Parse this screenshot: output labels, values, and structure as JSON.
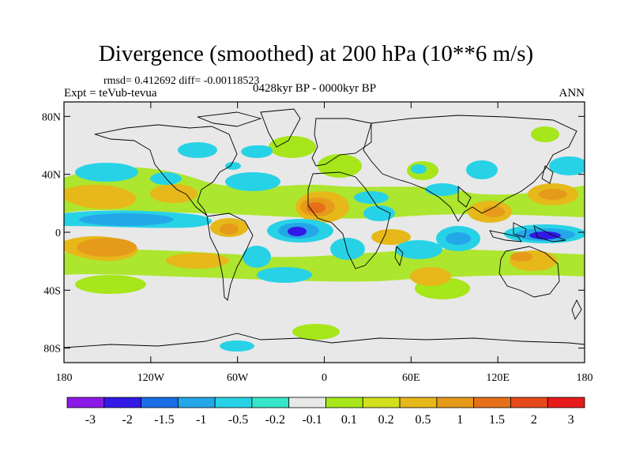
{
  "title": "Divergence (smoothed) at 200 hPa (10**6 m/s)",
  "stats_line": "rmsd= 0.412692 diff= -0.00118523",
  "experiment_line": "Expt = teVub-tevua",
  "period_line": "0428kyr BP - 0000kyr BP",
  "season": "ANN",
  "lat_ticks": [
    {
      "value": 80,
      "label": "80N"
    },
    {
      "value": 40,
      "label": "40N"
    },
    {
      "value": 0,
      "label": "0"
    },
    {
      "value": -40,
      "label": "40S"
    },
    {
      "value": -80,
      "label": "80S"
    }
  ],
  "lon_ticks": [
    {
      "value": -180,
      "label": "180"
    },
    {
      "value": -120,
      "label": "120W"
    },
    {
      "value": -60,
      "label": "60W"
    },
    {
      "value": 0,
      "label": "0"
    },
    {
      "value": 60,
      "label": "60E"
    },
    {
      "value": 120,
      "label": "120E"
    },
    {
      "value": 180,
      "label": "180"
    }
  ],
  "colorbar": {
    "colors": [
      "#8c1ae6",
      "#3319e6",
      "#1a6ee6",
      "#24a7e8",
      "#28d2e6",
      "#36e6c8",
      "#e8e8e8",
      "#a6e61a",
      "#d2e01e",
      "#e6b81a",
      "#e69a1a",
      "#e6701a",
      "#e64a1a",
      "#e61a1a"
    ],
    "labels": [
      "-3",
      "-2",
      "-1.5",
      "-1",
      "-0.5",
      "-0.2",
      "-0.1",
      "0.1",
      "0.2",
      "0.5",
      "1",
      "1.5",
      "2",
      "3"
    ]
  },
  "chart_data": {
    "type": "heatmap",
    "projection": "cylindrical equidistant",
    "lon_range": [
      -180,
      180
    ],
    "lat_range": [
      -90,
      90
    ],
    "background_level": "-0.1 to 0.1",
    "features": [
      {
        "lon": -21,
        "lat": 0,
        "level": "-3"
      },
      {
        "lon": 160,
        "lat": 0,
        "level": "-2"
      },
      {
        "lon": -25,
        "lat": 17,
        "level": "1.5"
      },
      {
        "lon": -148,
        "lat": -12,
        "level": "1"
      },
      {
        "lon": -93,
        "lat": 0,
        "level": "1"
      },
      {
        "lon": 20,
        "lat": -5,
        "level": "0.5"
      },
      {
        "lon": 55,
        "lat": 5,
        "level": "-1"
      },
      {
        "lon": 96,
        "lat": 0,
        "level": "-1.5"
      },
      {
        "lon": 120,
        "lat": 8,
        "level": "1.5"
      },
      {
        "lon": 150,
        "lat": 28,
        "level": "1"
      },
      {
        "lon": -50,
        "lat": -8,
        "level": "-0.5"
      },
      {
        "lon": -140,
        "lat": 12,
        "level": "-1"
      },
      {
        "lon": 120,
        "lat": -25,
        "level": "1"
      }
    ]
  }
}
